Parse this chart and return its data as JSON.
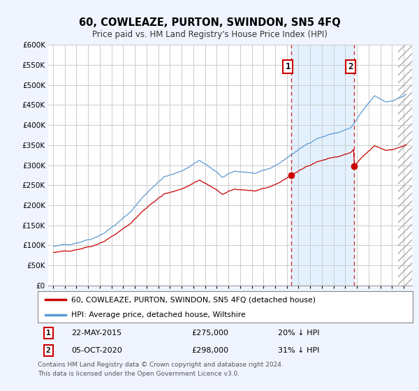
{
  "title": "60, COWLEAZE, PURTON, SWINDON, SN5 4FQ",
  "subtitle": "Price paid vs. HM Land Registry's House Price Index (HPI)",
  "ylim": [
    0,
    600000
  ],
  "yticks": [
    0,
    50000,
    100000,
    150000,
    200000,
    250000,
    300000,
    350000,
    400000,
    450000,
    500000,
    550000,
    600000
  ],
  "hpi_color": "#5b9bd5",
  "price_color": "#cc0000",
  "shade_color": "#ddeeff",
  "annotation1_date": "22-MAY-2015",
  "annotation1_price": 275000,
  "annotation1_pct": "20% ↓ HPI",
  "annotation1_label": "1",
  "annotation2_date": "05-OCT-2020",
  "annotation2_price": 298000,
  "annotation2_label": "2",
  "annotation2_pct": "31% ↓ HPI",
  "legend_label1": "60, COWLEAZE, PURTON, SWINDON, SN5 4FQ (detached house)",
  "legend_label2": "HPI: Average price, detached house, Wiltshire",
  "footer": "Contains HM Land Registry data © Crown copyright and database right 2024.\nThis data is licensed under the Open Government Licence v3.0.",
  "bg_color": "#f0f4ff",
  "plot_bg_color": "#ffffff",
  "grid_color": "#cccccc"
}
